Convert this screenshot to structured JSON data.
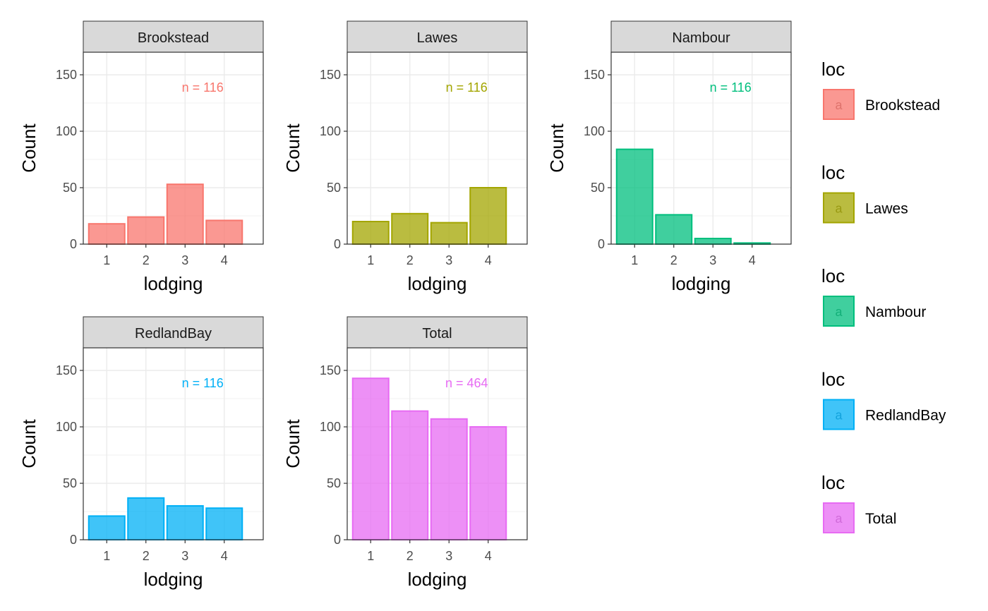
{
  "chart_data": {
    "type": "bar",
    "facet_variable": "loc",
    "xlabel": "lodging",
    "ylabel": "Count",
    "categories": [
      "1",
      "2",
      "3",
      "4"
    ],
    "ylim": [
      0,
      170
    ],
    "yticks": [
      0,
      50,
      100,
      150
    ],
    "grid": true,
    "legend_position": "right",
    "panels": [
      {
        "name": "Brookstead",
        "values": [
          18,
          24,
          53,
          21
        ],
        "n_label": "n = 116",
        "color": "#F8766D"
      },
      {
        "name": "Lawes",
        "values": [
          20,
          27,
          19,
          50
        ],
        "n_label": "n = 116",
        "color": "#A3A500"
      },
      {
        "name": "Nambour",
        "values": [
          84,
          26,
          5,
          1
        ],
        "n_label": "n = 116",
        "color": "#00BF7D"
      },
      {
        "name": "RedlandBay",
        "values": [
          21,
          37,
          30,
          28
        ],
        "n_label": "n = 116",
        "color": "#00B0F6"
      },
      {
        "name": "Total",
        "values": [
          143,
          114,
          107,
          100
        ],
        "n_label": "n = 464",
        "color": "#E76BF3"
      }
    ],
    "legend": {
      "title": "loc",
      "key_glyph": "a",
      "items": [
        "Brookstead",
        "Lawes",
        "Nambour",
        "RedlandBay",
        "Total"
      ]
    }
  }
}
